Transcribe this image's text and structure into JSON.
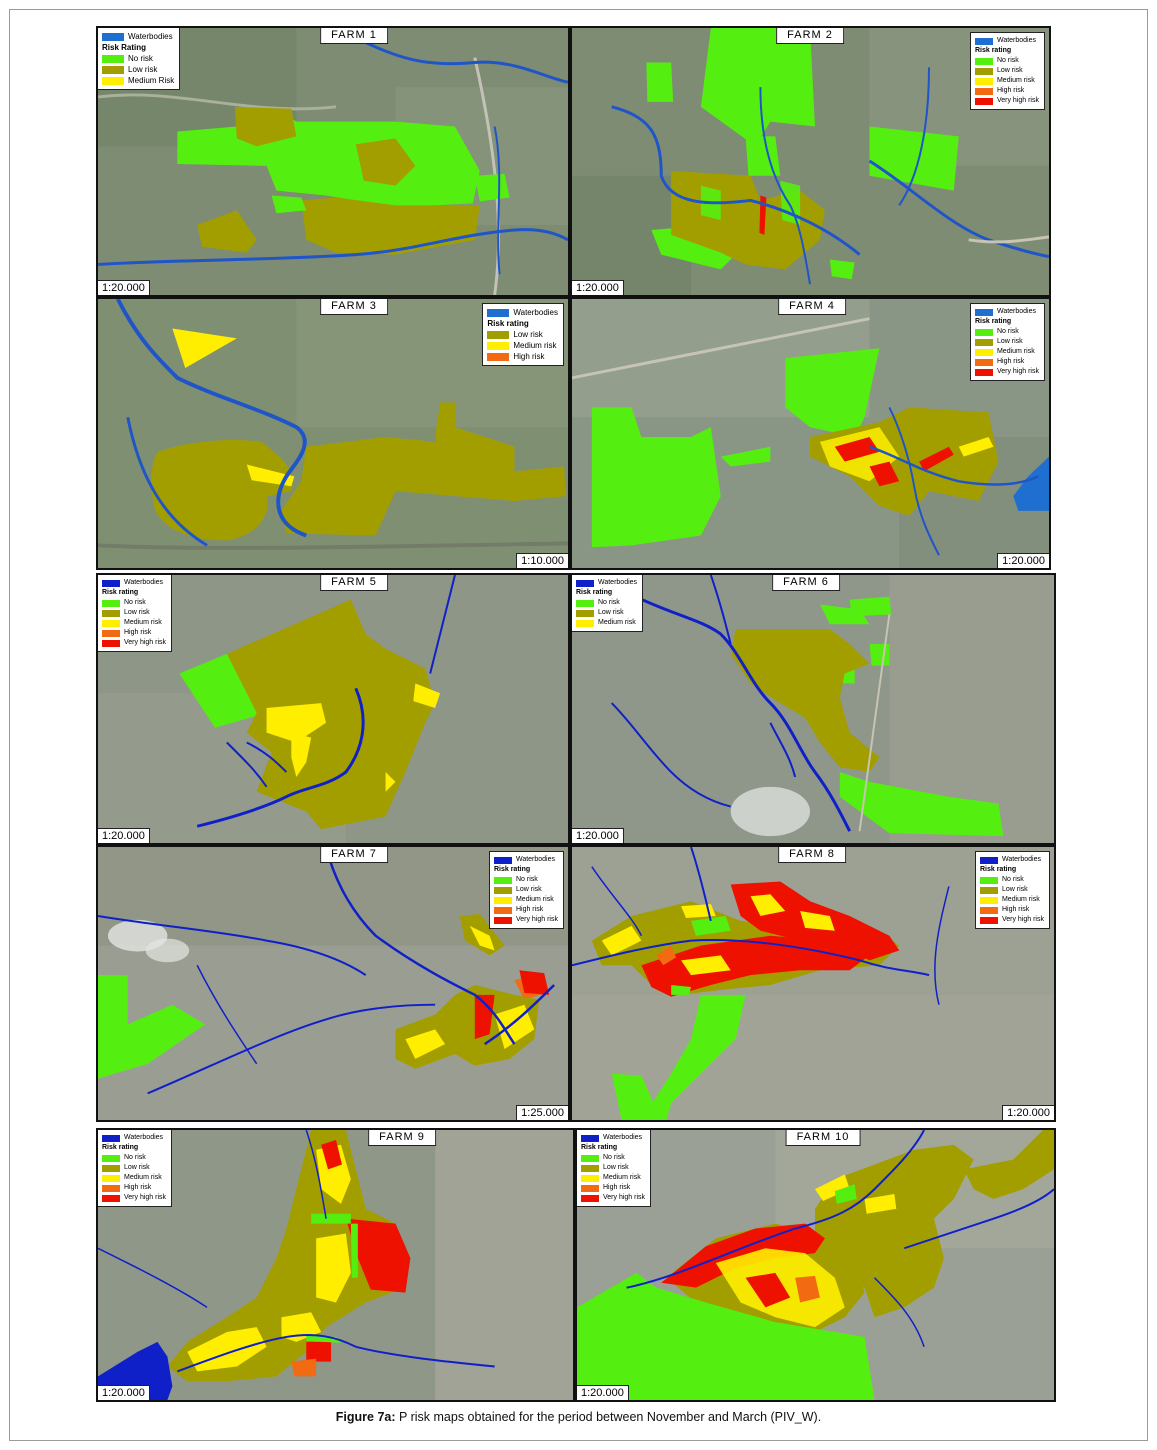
{
  "caption": {
    "label": "Figure 7a:",
    "text": " P risk maps obtained for the period between November and March (PIV_W)."
  },
  "colors": {
    "waterbodies": "#1f6fd1",
    "waterbodies_dark": "#1020c8",
    "no_risk": "#55ee11",
    "low_risk": "#a39e00",
    "medium_risk": "#ffee00",
    "high_risk": "#f26a12",
    "very_high_risk": "#ee1100",
    "background": "#7f8f78"
  },
  "panels": [
    {
      "title": "FARM 1",
      "scale": "1:20.000",
      "legend_header": "Risk Rating",
      "legend": [
        "Waterbodies",
        "No risk",
        "Low risk",
        "Medium Risk"
      ]
    },
    {
      "title": "FARM 2",
      "scale": "1:20.000",
      "legend_header": "Risk rating",
      "legend": [
        "Waterbodies",
        "No risk",
        "Low risk",
        "Medium risk",
        "High risk",
        "Very high risk"
      ]
    },
    {
      "title": "FARM 3",
      "scale": "1:10.000",
      "legend_header": "Risk rating",
      "legend": [
        "Waterbodies",
        "Low risk",
        "Medium risk",
        "High risk"
      ]
    },
    {
      "title": "FARM 4",
      "scale": "1:20.000",
      "legend_header": "Risk rating",
      "legend": [
        "Waterbodies",
        "No risk",
        "Low risk",
        "Medium risk",
        "High risk",
        "Very high risk"
      ]
    },
    {
      "title": "FARM 5",
      "scale": "1:20.000",
      "legend_header": "Risk rating",
      "legend": [
        "Waterbodies",
        "No risk",
        "Low risk",
        "Medium risk",
        "High risk",
        "Very high risk"
      ]
    },
    {
      "title": "FARM 6",
      "scale": "1:20.000",
      "legend_header": "Risk rating",
      "legend": [
        "Waterbodies",
        "No risk",
        "Low risk",
        "Medium risk"
      ]
    },
    {
      "title": "FARM 7",
      "scale": "1:25.000",
      "legend_header": "Risk rating",
      "legend": [
        "Waterbodies",
        "No risk",
        "Low risk",
        "Medium risk",
        "High risk",
        "Very high risk"
      ]
    },
    {
      "title": "FARM 8",
      "scale": "1:20.000",
      "legend_header": "Risk rating",
      "legend": [
        "Waterbodies",
        "No risk",
        "Low risk",
        "Medium risk",
        "High risk",
        "Very high risk"
      ]
    },
    {
      "title": "FARM 9",
      "scale": "1:20.000",
      "legend_header": "Risk rating",
      "legend": [
        "Waterbodies",
        "No risk",
        "Low risk",
        "Medium risk",
        "High risk",
        "Very high risk"
      ]
    },
    {
      "title": "FARM 10",
      "scale": "1:20.000",
      "legend_header": "Risk rating",
      "legend": [
        "Waterbodies",
        "No risk",
        "Low risk",
        "Medium risk",
        "High risk",
        "Very high risk"
      ]
    }
  ]
}
